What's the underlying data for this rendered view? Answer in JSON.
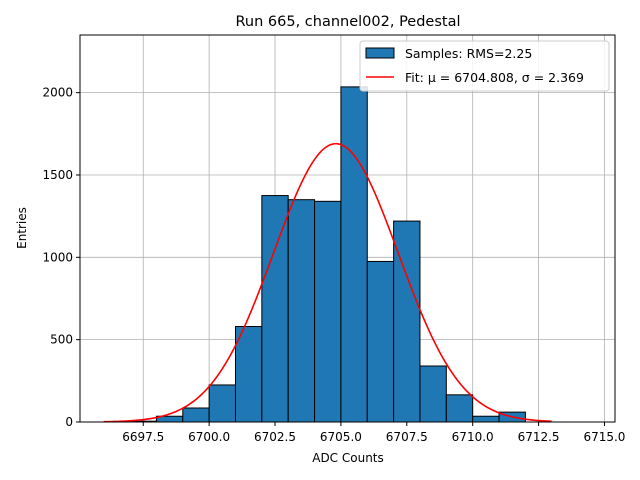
{
  "chart_data": {
    "type": "bar",
    "title": "Run 665, channel002, Pedestal",
    "xlabel": "ADC Counts",
    "ylabel": "Entries",
    "xlim": [
      6695.1,
      6715.4
    ],
    "ylim": [
      0,
      2350
    ],
    "x_ticks": [
      6697.5,
      6700.0,
      6702.5,
      6705.0,
      6707.5,
      6710.0,
      6712.5,
      6715.0
    ],
    "x_tick_labels": [
      "6697.5",
      "6700.0",
      "6702.5",
      "6705.0",
      "6707.5",
      "6710.0",
      "6712.5",
      "6715.0"
    ],
    "y_ticks": [
      0,
      500,
      1000,
      1500,
      2000
    ],
    "y_tick_labels": [
      "0",
      "500",
      "1000",
      "1500",
      "2000"
    ],
    "grid": true,
    "legend_position": "top-right",
    "series": [
      {
        "name": "Samples: RMS=2.25",
        "kind": "histogram",
        "color": "#1f77b4",
        "edgecolor": "#000000",
        "bin_edges": [
          6697,
          6698,
          6699,
          6700,
          6701,
          6702,
          6703,
          6704,
          6705,
          6706,
          6707,
          6708,
          6709,
          6710,
          6711,
          6712
        ],
        "values": [
          5,
          35,
          85,
          225,
          580,
          1375,
          1350,
          1340,
          2035,
          975,
          1220,
          340,
          165,
          35,
          60
        ]
      },
      {
        "name": "Fit: μ = 6704.808, σ = 2.369",
        "kind": "gaussian-fit",
        "color": "#ff0000",
        "mu": 6704.808,
        "sigma": 2.369,
        "amplitude": 1690,
        "x_range": [
          6696,
          6713
        ]
      }
    ]
  }
}
